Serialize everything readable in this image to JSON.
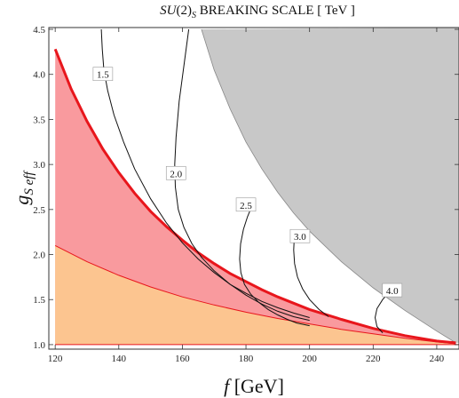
{
  "chart_data": {
    "type": "area",
    "title": "SU(2)S BREAKING SCALE  [ TeV ]",
    "title_parts": {
      "pre": "SU",
      "paren": "(2)",
      "sub": "S",
      "rest": " BREAKING SCALE  [ TeV ]"
    },
    "xlabel": "f [GeV]",
    "xlabel_parts": {
      "var": "f",
      "unit": " [GeV]"
    },
    "ylabel": "gS eff",
    "ylabel_parts": {
      "var": "g",
      "sub": "S eff"
    },
    "xlim": [
      118,
      247
    ],
    "ylim": [
      0.95,
      4.52
    ],
    "x_ticks": [
      120,
      140,
      160,
      180,
      200,
      220,
      240
    ],
    "y_ticks": [
      1.0,
      1.5,
      2.0,
      2.5,
      3.0,
      3.5,
      4.0,
      4.5
    ],
    "x_tick_labels": [
      "120",
      "140",
      "160",
      "180",
      "200",
      "220",
      "240"
    ],
    "y_tick_labels": [
      "1.0",
      "1.5",
      "2.0",
      "2.5",
      "3.0",
      "3.5",
      "4.0",
      "4.5"
    ],
    "grid": false,
    "colors": {
      "excluded_gray": "#c8c8c8",
      "red_region": "#f99a9e",
      "orange_region": "#fcc590",
      "red_line": "#e8161c",
      "contour": "#111111",
      "gray_edge": "#888888"
    },
    "series": [
      {
        "name": "",
        "role": "upper-boundary",
        "x": [
          120,
          125,
          130,
          135,
          140,
          145,
          150,
          155,
          160,
          165,
          170,
          175,
          180,
          185,
          190,
          195,
          200,
          210,
          220,
          230,
          240,
          246
        ],
        "y": [
          4.28,
          3.84,
          3.48,
          3.17,
          2.91,
          2.68,
          2.48,
          2.31,
          2.16,
          2.02,
          1.9,
          1.79,
          1.7,
          1.61,
          1.53,
          1.46,
          1.39,
          1.28,
          1.18,
          1.1,
          1.04,
          1.02
        ]
      },
      {
        "name": "",
        "role": "lower-boundary",
        "x": [
          120,
          130,
          140,
          150,
          160,
          170,
          180,
          190,
          200,
          210,
          220,
          230,
          240,
          246
        ],
        "y": [
          2.1,
          1.92,
          1.77,
          1.64,
          1.53,
          1.44,
          1.36,
          1.29,
          1.23,
          1.17,
          1.12,
          1.07,
          1.03,
          1.01
        ]
      },
      {
        "name": "",
        "role": "gray-boundary",
        "x": [
          166,
          170,
          175,
          180,
          185,
          190,
          195,
          200,
          210,
          220,
          230,
          240,
          246
        ],
        "y": [
          4.5,
          4.05,
          3.62,
          3.25,
          2.95,
          2.69,
          2.46,
          2.26,
          1.92,
          1.63,
          1.38,
          1.15,
          1.02
        ]
      }
    ],
    "contours": [
      {
        "label": "1.5",
        "label_at": [
          135,
          4.0
        ],
        "x": [
          134.5,
          134.8,
          135.3,
          136.5,
          138.5,
          141.5,
          145,
          150,
          155,
          160,
          165,
          170,
          175,
          180,
          185,
          190,
          195,
          200
        ],
        "y": [
          4.5,
          4.28,
          4.05,
          3.82,
          3.55,
          3.25,
          2.95,
          2.62,
          2.35,
          2.13,
          1.95,
          1.8,
          1.67,
          1.57,
          1.48,
          1.41,
          1.35,
          1.3
        ]
      },
      {
        "label": "2.0",
        "label_at": [
          158,
          2.9
        ],
        "x": [
          162,
          160.5,
          159,
          158,
          157.6,
          157.8,
          158.7,
          160.5,
          163,
          166,
          170,
          175,
          180,
          185,
          190,
          195,
          200
        ],
        "y": [
          4.5,
          4.1,
          3.7,
          3.3,
          3.0,
          2.75,
          2.5,
          2.3,
          2.12,
          1.97,
          1.82,
          1.67,
          1.55,
          1.45,
          1.37,
          1.31,
          1.27
        ]
      },
      {
        "label": "2.5",
        "label_at": [
          180,
          2.55
        ],
        "x": [
          182,
          180.5,
          179.2,
          178.3,
          178.0,
          178.4,
          179.5,
          181.5,
          184,
          187,
          190,
          193,
          196,
          200
        ],
        "y": [
          2.55,
          2.42,
          2.28,
          2.12,
          1.95,
          1.8,
          1.67,
          1.56,
          1.47,
          1.39,
          1.33,
          1.28,
          1.24,
          1.21
        ]
      },
      {
        "label": "3.0",
        "label_at": [
          197,
          2.2
        ],
        "x": [
          195.2,
          195.0,
          195.3,
          196.2,
          197.8,
          200,
          203,
          206
        ],
        "y": [
          2.2,
          2.05,
          1.9,
          1.75,
          1.62,
          1.5,
          1.39,
          1.31
        ]
      },
      {
        "label": "4.0",
        "label_at": [
          226,
          1.6
        ],
        "x": [
          225.5,
          223,
          221.2,
          220.6,
          221.2,
          223
        ],
        "y": [
          1.6,
          1.5,
          1.4,
          1.3,
          1.2,
          1.13
        ]
      }
    ]
  }
}
